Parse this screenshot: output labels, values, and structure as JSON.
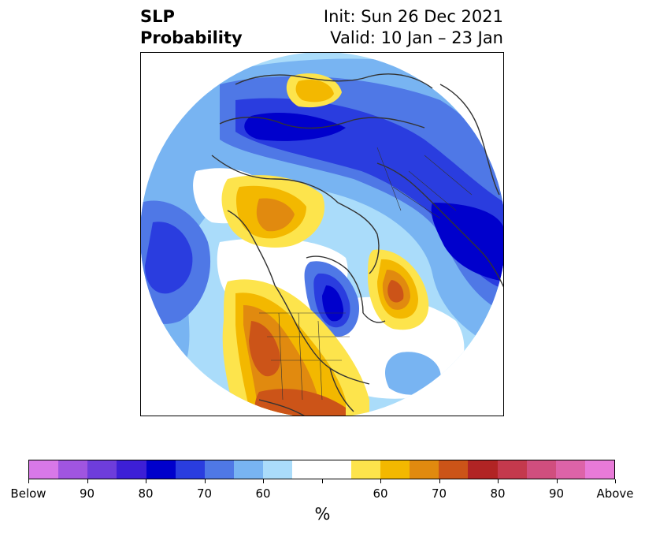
{
  "title": {
    "left_line1": "SLP",
    "left_line2": "Probability",
    "right_line1": "Init: Sun 26 Dec 2021",
    "right_line2": "Valid: 10 Jan – 23 Jan"
  },
  "colorbar": {
    "unit": "%",
    "colors": [
      "#d878e8",
      "#a055e0",
      "#6e3ddb",
      "#3d1fd6",
      "#0000cc",
      "#2a3ddf",
      "#4f78e6",
      "#78b4f2",
      "#aadcfa",
      "#ffffff",
      "#ffffff",
      "#fde44c",
      "#f3b800",
      "#e18a0f",
      "#cc5418",
      "#b12424",
      "#c4394d",
      "#d04e7e",
      "#dd63a8",
      "#e87ad8"
    ],
    "labels": [
      "Below",
      "90",
      "80",
      "70",
      "60",
      "60",
      "70",
      "80",
      "90",
      "Above"
    ]
  }
}
